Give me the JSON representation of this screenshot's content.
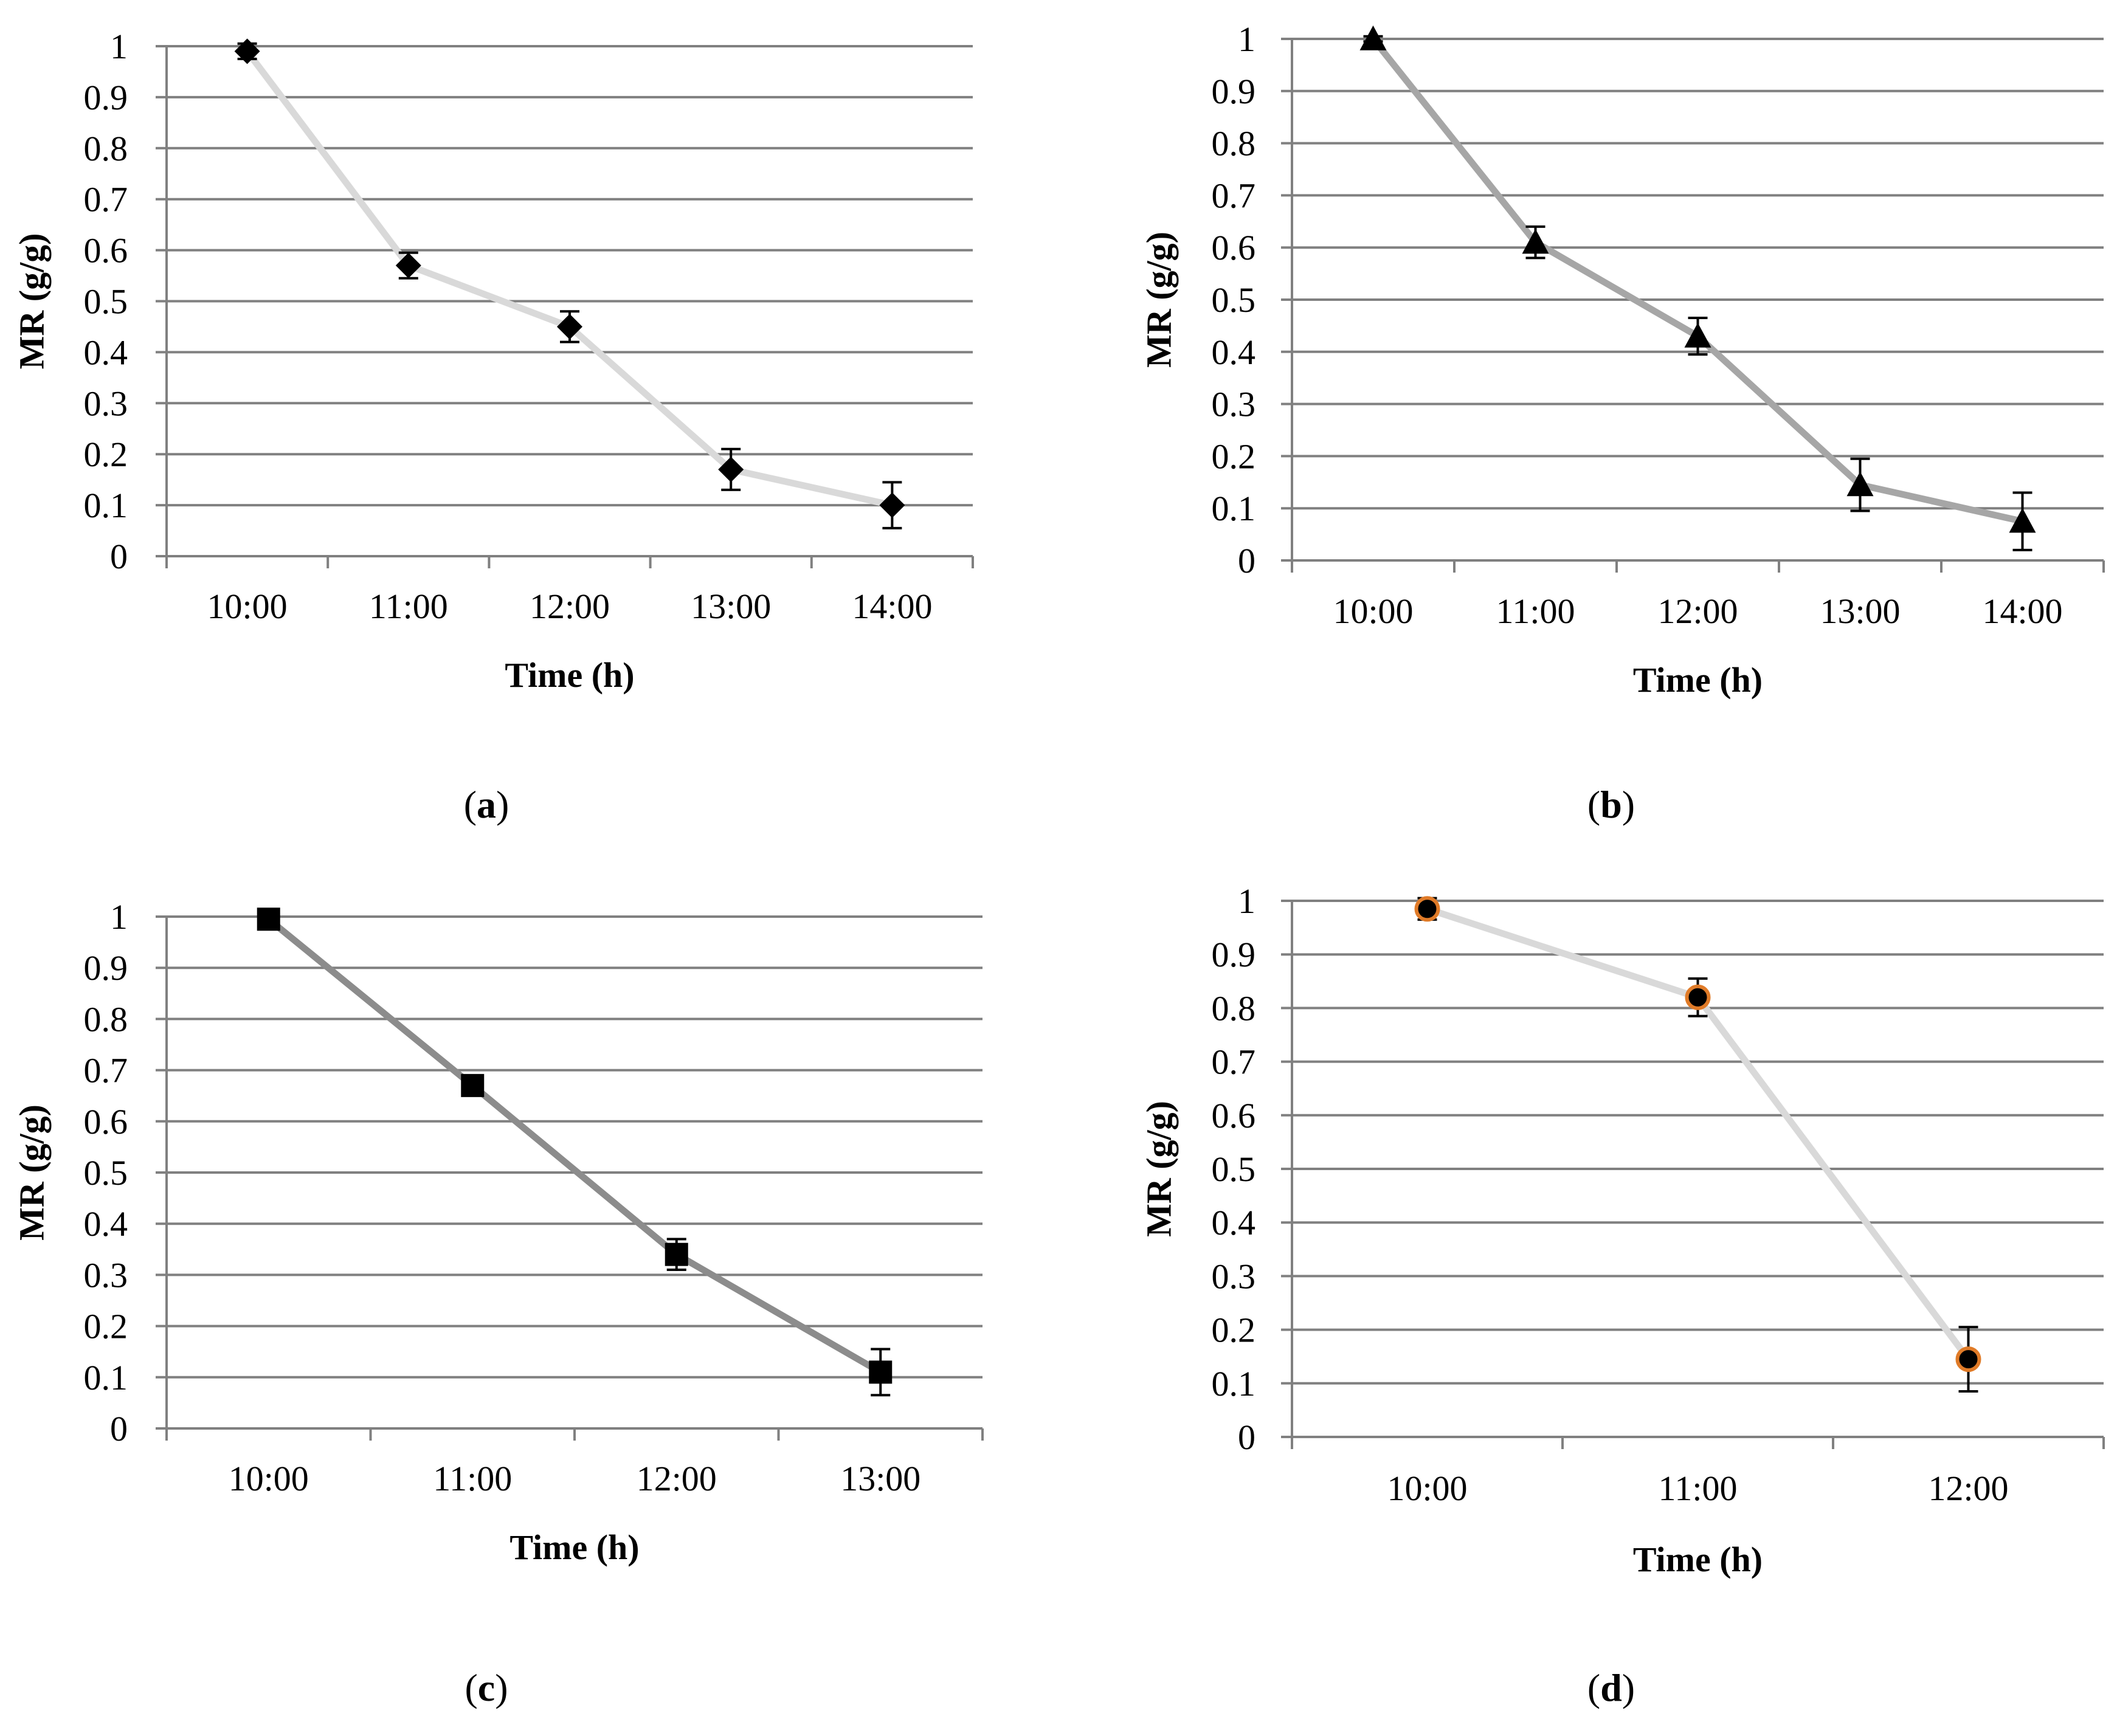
{
  "figure": {
    "panels": [
      "a",
      "b",
      "c",
      "d"
    ]
  },
  "styles": {
    "gridline_color": "#808080",
    "axis_color": "#808080",
    "marker_color": "#000000",
    "errorbar_color": "#000000",
    "background": "#ffffff"
  },
  "chart_data": [
    {
      "id": "a",
      "panel_label": "(a)",
      "panel_letter": "a",
      "type": "line",
      "marker": "diamond",
      "line_color": "#d9d9d9",
      "marker_edge_color": "#000000",
      "categories": [
        "10:00",
        "11:00",
        "12:00",
        "13:00",
        "14:00"
      ],
      "series": [
        {
          "name": "MR",
          "values": [
            0.99,
            0.57,
            0.45,
            0.17,
            0.1
          ],
          "errors": [
            0.015,
            0.025,
            0.03,
            0.04,
            0.045
          ]
        }
      ],
      "xlabel": "Time (h)",
      "ylabel": "MR (g/g)",
      "ylim": [
        0,
        1
      ],
      "yticks": [
        "0",
        "0.1",
        "0.2",
        "0.3",
        "0.4",
        "0.5",
        "0.6",
        "0.7",
        "0.8",
        "0.9",
        "1"
      ],
      "grid": true
    },
    {
      "id": "b",
      "panel_label": "(b)",
      "panel_letter": "b",
      "type": "line",
      "marker": "triangle",
      "line_color": "#a6a6a6",
      "marker_edge_color": "#000000",
      "categories": [
        "10:00",
        "11:00",
        "12:00",
        "13:00",
        "14:00"
      ],
      "series": [
        {
          "name": "MR",
          "values": [
            1.0,
            0.61,
            0.43,
            0.145,
            0.075
          ],
          "errors": [
            0.005,
            0.03,
            0.035,
            0.05,
            0.055
          ]
        }
      ],
      "xlabel": "Time (h)",
      "ylabel": "MR (g/g)",
      "ylim": [
        0,
        1
      ],
      "yticks": [
        "0",
        "0.1",
        "0.2",
        "0.3",
        "0.4",
        "0.5",
        "0.6",
        "0.7",
        "0.8",
        "0.9",
        "1"
      ],
      "grid": true
    },
    {
      "id": "c",
      "panel_label": "(c)",
      "panel_letter": "c",
      "type": "line",
      "marker": "square",
      "line_color": "#8c8c8c",
      "marker_edge_color": "#000000",
      "categories": [
        "10:00",
        "11:00",
        "12:00",
        "13:00"
      ],
      "series": [
        {
          "name": "MR",
          "values": [
            0.995,
            0.67,
            0.34,
            0.11
          ],
          "errors": [
            0.005,
            0.01,
            0.03,
            0.045
          ]
        }
      ],
      "xlabel": "Time (h)",
      "ylabel": "MR (g/g)",
      "ylim": [
        0,
        1
      ],
      "yticks": [
        "0",
        "0.1",
        "0.2",
        "0.3",
        "0.4",
        "0.5",
        "0.6",
        "0.7",
        "0.8",
        "0.9",
        "1"
      ],
      "grid": true
    },
    {
      "id": "d",
      "panel_label": "(d)",
      "panel_letter": "d",
      "type": "line",
      "marker": "circle",
      "line_color": "#d9d9d9",
      "marker_edge_color": "#e07b28",
      "categories": [
        "10:00",
        "11:00",
        "12:00"
      ],
      "series": [
        {
          "name": "MR",
          "values": [
            0.985,
            0.82,
            0.145
          ],
          "errors": [
            0.02,
            0.035,
            0.06
          ]
        }
      ],
      "xlabel": "Time  (h)",
      "ylabel": "MR (g/g)",
      "ylim": [
        0,
        1
      ],
      "yticks": [
        "0",
        "0.1",
        "0.2",
        "0.3",
        "0.4",
        "0.5",
        "0.6",
        "0.7",
        "0.8",
        "0.9",
        "1"
      ],
      "grid": true
    }
  ]
}
